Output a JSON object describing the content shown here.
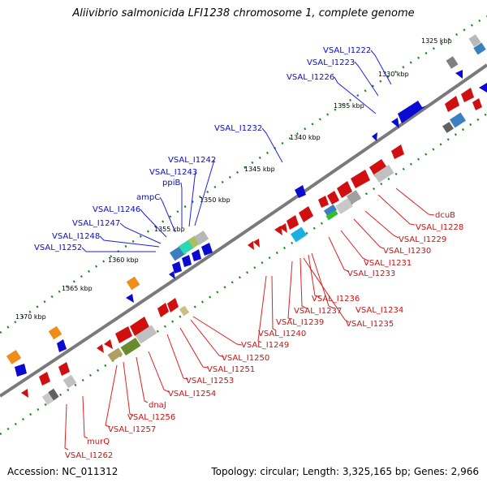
{
  "title": "Aliivibrio salmonicida LFI1238 chromosome 1, complete genome",
  "footer": {
    "accession": "Accession: NC_011312",
    "summary": "Topology: circular; Length: 3,325,165 bp; Genes: 2,966"
  },
  "ticks": [
    {
      "label": "1325 kbp"
    },
    {
      "label": "1330 kbp"
    },
    {
      "label": "1335 kbp"
    },
    {
      "label": "1340 kbp"
    },
    {
      "label": "1345 kbp"
    },
    {
      "label": "1350 kbp"
    },
    {
      "label": "1355 kbp"
    },
    {
      "label": "1360 kbp"
    },
    {
      "label": "1365 kbp"
    },
    {
      "label": "1370 kbp"
    }
  ],
  "forward_genes": [
    "VSAL_I1222",
    "VSAL_I1223",
    "VSAL_I1226",
    "VSAL_I1232",
    "VSAL_I1242",
    "VSAL_I1243",
    "ppiB",
    "ampC",
    "VSAL_I1246",
    "VSAL_I1247",
    "VSAL_I1248",
    "VSAL_I1252"
  ],
  "reverse_genes": [
    "dcuB",
    "VSAL_I1228",
    "VSAL_I1229",
    "VSAL_I1230",
    "VSAL_I1231",
    "VSAL_I1233",
    "VSAL_I1236",
    "VSAL_I1234",
    "VSAL_I1237",
    "VSAL_I1235",
    "VSAL_I1239",
    "VSAL_I1240",
    "VSAL_I1249",
    "VSAL_I1250",
    "VSAL_I1251",
    "VSAL_I1253",
    "VSAL_I1254",
    "dnaJ",
    "VSAL_I1256",
    "VSAL_I1257",
    "murQ",
    "VSAL_I1262"
  ],
  "colors": {
    "forward_strand": "#0a0ad0",
    "reverse_strand": "#d01010",
    "backbone": "#808080",
    "gc_dots": "#1a8a1a"
  }
}
